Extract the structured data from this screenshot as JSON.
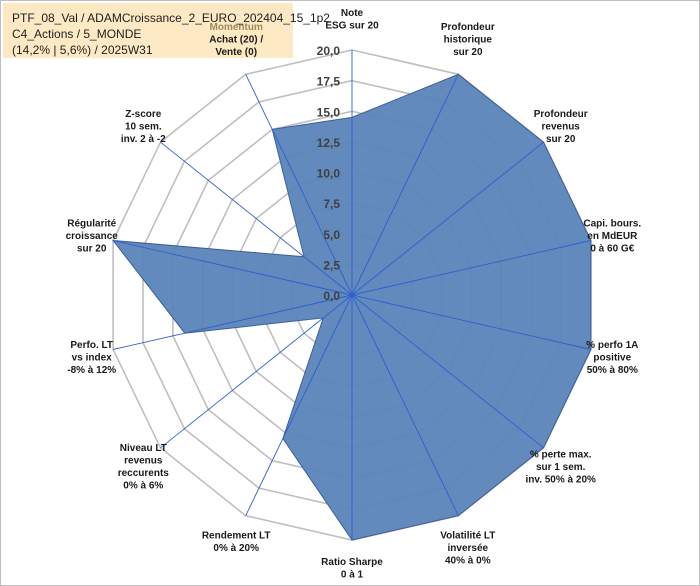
{
  "title_box": {
    "line1": "PTF_08_Val / ADAMCroissance_2_EURO_202404_15_1p2",
    "line2": "C4_Actions / 5_MONDE",
    "line3": "(14,2% | 5,6%) / 2025W31"
  },
  "colors": {
    "fill": "#5b84b8",
    "stroke": "#3c5e98",
    "grid": "#bfbfbf",
    "axis": "#2e5fd0",
    "title_bg": "#fde9c4",
    "accent_label": "#9c8a5a"
  },
  "chart_data": {
    "type": "radar",
    "rmin": 0,
    "rmax": 20,
    "ticks": [
      "0,0",
      "2,5",
      "5,0",
      "7,5",
      "10,0",
      "12,5",
      "15,0",
      "17,5",
      "20,0"
    ],
    "axes": [
      {
        "label": [
          "Note",
          "ESG sur 20"
        ],
        "value": 14.5
      },
      {
        "label": [
          "Profondeur",
          "historique",
          "sur 20"
        ],
        "value": 20
      },
      {
        "label": [
          "Profondeur",
          "revenus",
          "sur 20"
        ],
        "value": 20
      },
      {
        "label": [
          "Capi. bours.",
          "en MdEUR",
          "0 à 60 G€"
        ],
        "value": 20
      },
      {
        "label": [
          "% perfo 1A",
          "positive",
          "50% à 80%"
        ],
        "value": 20
      },
      {
        "label": [
          "% perte max.",
          "sur 1 sem.",
          "inv. 50% à 20%"
        ],
        "value": 20
      },
      {
        "label": [
          "Volatilité LT",
          "inversée",
          "40% à 0%"
        ],
        "value": 20
      },
      {
        "label": [
          "Ratio Sharpe",
          "0 à 1"
        ],
        "value": 20
      },
      {
        "label": [
          "Rendement LT",
          "0% à 20%"
        ],
        "value": 13
      },
      {
        "label": [
          "Niveau LT",
          "revenus",
          "reccurents",
          "0% à 6%"
        ],
        "value": 3
      },
      {
        "label": [
          "Perfo. LT",
          "vs index",
          "-8% à 12%"
        ],
        "value": 14
      },
      {
        "label": [
          "Régularité",
          "croissance",
          "sur 20"
        ],
        "value": 20
      },
      {
        "label": [
          "Z-score",
          "10 sem.",
          "inv. 2 à -2"
        ],
        "value": 5
      },
      {
        "label": [
          "Momentum",
          "Achat (20) /",
          "Vente (0)"
        ],
        "value": 15
      }
    ]
  }
}
